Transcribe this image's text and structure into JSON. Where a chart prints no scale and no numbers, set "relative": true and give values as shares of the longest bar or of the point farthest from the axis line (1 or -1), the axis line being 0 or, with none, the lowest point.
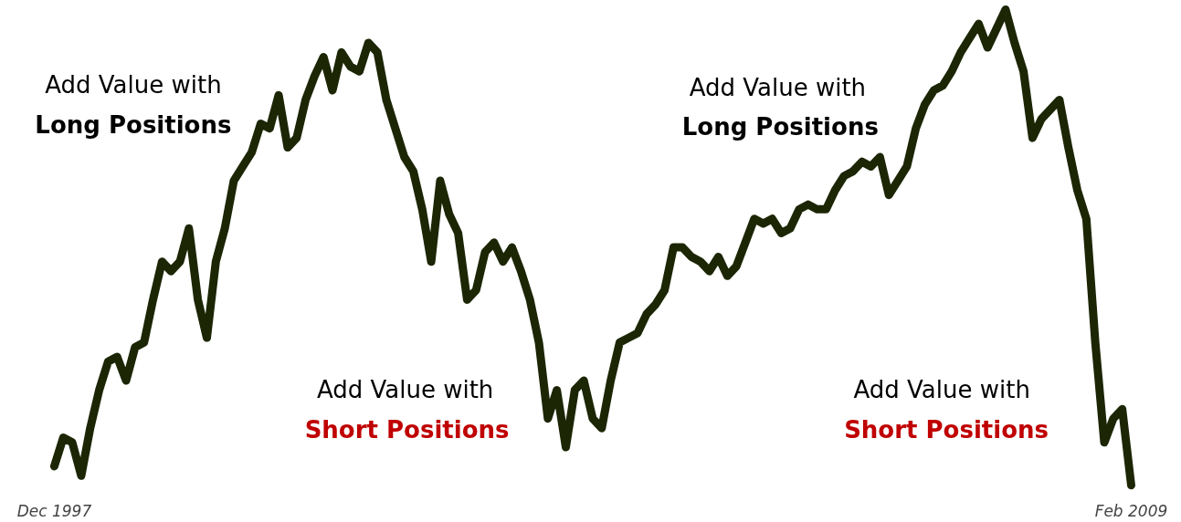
{
  "chart_data": {
    "type": "line",
    "relative": true,
    "line_style": "solid",
    "categories": [
      "Dec 1997",
      null,
      null,
      null,
      null,
      null,
      null,
      null,
      null,
      null,
      null,
      null,
      null,
      null,
      null,
      null,
      null,
      null,
      null,
      null,
      null,
      null,
      null,
      null,
      null,
      null,
      null,
      null,
      null,
      null,
      null,
      null,
      null,
      null,
      null,
      null,
      null,
      null,
      null,
      null,
      null,
      null,
      null,
      null,
      null,
      null,
      null,
      null,
      null,
      null,
      null,
      null,
      null,
      null,
      null,
      null,
      null,
      null,
      null,
      null,
      null,
      null,
      null,
      null,
      null,
      null,
      null,
      null,
      null,
      null,
      null,
      null,
      null,
      null,
      null,
      null,
      null,
      null,
      null,
      null,
      null,
      null,
      null,
      null,
      null,
      null,
      null,
      null,
      null,
      null,
      null,
      null,
      null,
      null,
      null,
      null,
      null,
      null,
      null,
      null,
      null,
      null,
      null,
      null,
      null,
      null,
      null,
      null,
      null,
      null,
      null,
      null,
      null,
      null,
      null,
      null,
      null,
      null,
      null,
      null,
      "Feb 2009"
    ],
    "series": [
      {
        "color": "#1c2605",
        "values": [
          0.04,
          0.1,
          0.09,
          0.02,
          0.12,
          0.2,
          0.26,
          0.27,
          0.22,
          0.29,
          0.3,
          0.39,
          0.47,
          0.45,
          0.47,
          0.54,
          0.39,
          0.31,
          0.47,
          0.54,
          0.64,
          0.67,
          0.7,
          0.76,
          0.75,
          0.82,
          0.71,
          0.73,
          0.81,
          0.86,
          0.9,
          0.83,
          0.91,
          0.88,
          0.87,
          0.93,
          0.91,
          0.81,
          0.75,
          0.69,
          0.66,
          0.58,
          0.47,
          0.64,
          0.57,
          0.53,
          0.39,
          0.41,
          0.49,
          0.51,
          0.47,
          0.5,
          0.45,
          0.39,
          0.3,
          0.14,
          0.2,
          0.08,
          0.2,
          0.22,
          0.14,
          0.12,
          0.22,
          0.3,
          0.31,
          0.32,
          0.36,
          0.38,
          0.41,
          0.5,
          0.5,
          0.48,
          0.47,
          0.45,
          0.48,
          0.44,
          0.46,
          0.51,
          0.56,
          0.55,
          0.56,
          0.53,
          0.54,
          0.58,
          0.59,
          0.58,
          0.58,
          0.62,
          0.65,
          0.66,
          0.68,
          0.67,
          0.69,
          0.61,
          0.64,
          0.67,
          0.75,
          0.8,
          0.83,
          0.84,
          0.87,
          0.91,
          0.94,
          0.97,
          0.92,
          0.96,
          1.0,
          0.93,
          0.87,
          0.73,
          0.77,
          0.79,
          0.81,
          0.71,
          0.62,
          0.56,
          0.3,
          0.09,
          0.14,
          0.16,
          0.0
        ]
      }
    ],
    "annotations": [
      "Add Value with",
      "Long Positions",
      "Add Value with",
      "Short Positions",
      "Add Value with",
      "Long Positions",
      "Add Value with",
      "Short Positions"
    ]
  }
}
